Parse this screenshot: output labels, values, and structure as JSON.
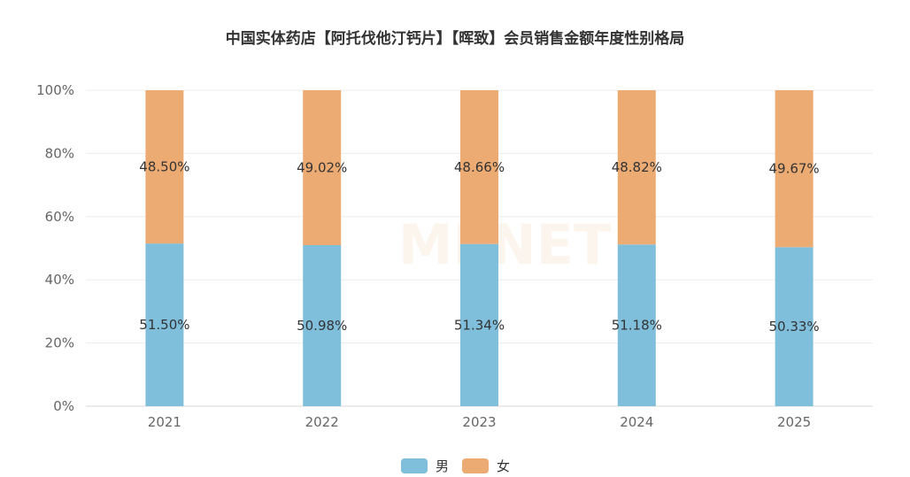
{
  "chart_data": {
    "type": "bar",
    "stacked": true,
    "title": "中国实体药店【阿托伐他汀钙片】【晖致】会员销售金额年度性别格局",
    "categories": [
      "2021",
      "2022",
      "2023",
      "2024",
      "2025"
    ],
    "series": [
      {
        "name": "男",
        "color": "#7fbfdc",
        "values": [
          51.5,
          50.98,
          51.34,
          51.18,
          50.33
        ],
        "labels": [
          "51.50%",
          "50.98%",
          "51.34%",
          "51.18%",
          "50.33%"
        ]
      },
      {
        "name": "女",
        "color": "#edab74",
        "values": [
          48.5,
          49.02,
          48.66,
          48.82,
          49.67
        ],
        "labels": [
          "48.50%",
          "49.02%",
          "48.66%",
          "48.82%",
          "49.67%"
        ]
      }
    ],
    "yticks": [
      "0%",
      "20%",
      "40%",
      "60%",
      "80%",
      "100%"
    ],
    "ylim": [
      0,
      100
    ],
    "grid": true,
    "legend_position": "bottom-center",
    "watermark": "MENET"
  }
}
